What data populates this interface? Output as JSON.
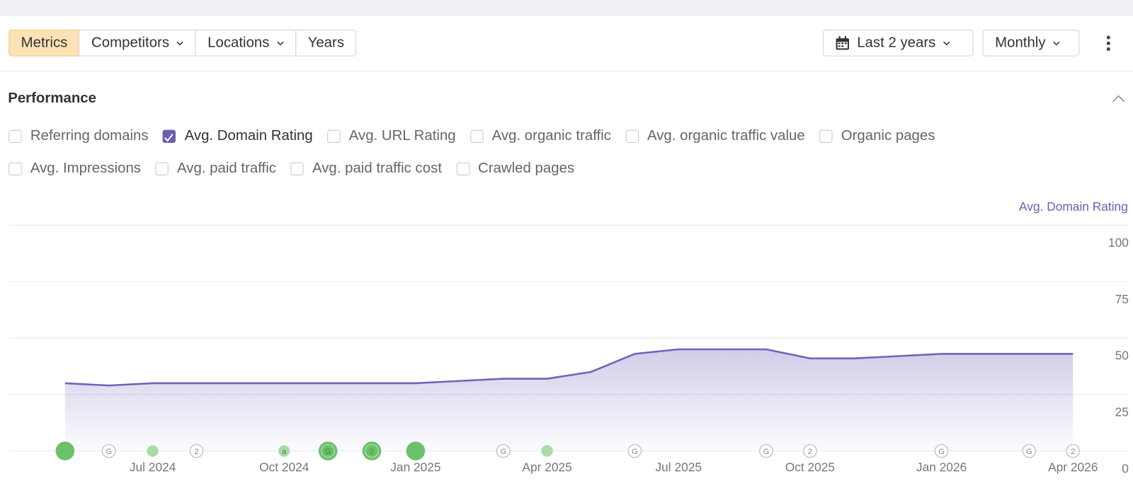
{
  "toolbar": {
    "tabs": [
      {
        "label": "Metrics",
        "active": true,
        "dropdown": false
      },
      {
        "label": "Competitors",
        "active": false,
        "dropdown": true
      },
      {
        "label": "Locations",
        "active": false,
        "dropdown": true
      },
      {
        "label": "Years",
        "active": false,
        "dropdown": false
      }
    ],
    "date_range": "Last 2 years",
    "interval": "Monthly"
  },
  "performance": {
    "title": "Performance",
    "option_rows": [
      [
        {
          "label": "Referring domains",
          "checked": false
        },
        {
          "label": "Avg. Domain Rating",
          "checked": true
        },
        {
          "label": "Avg. URL Rating",
          "checked": false
        },
        {
          "label": "Avg. organic traffic",
          "checked": false
        },
        {
          "label": "Avg. organic traffic value",
          "checked": false
        },
        {
          "label": "Organic pages",
          "checked": false
        }
      ],
      [
        {
          "label": "Avg. Impressions",
          "checked": false
        },
        {
          "label": "Avg. paid traffic",
          "checked": false
        },
        {
          "label": "Avg. paid traffic cost",
          "checked": false
        },
        {
          "label": "Crawled pages",
          "checked": false
        }
      ]
    ]
  },
  "chart_data": {
    "type": "area",
    "y_axis_label": "Avg. Domain Rating",
    "categories": [
      null,
      null,
      "Jul 2024",
      null,
      null,
      "Oct 2024",
      null,
      null,
      "Jan 2025",
      null,
      null,
      "Apr 2025",
      null,
      null,
      "Jul 2025",
      null,
      null,
      "Oct 2025",
      null,
      null,
      "Jan 2026",
      null,
      null,
      "Apr 2026"
    ],
    "values": [
      30,
      29,
      30,
      30,
      30,
      30,
      30,
      30,
      30,
      31,
      32,
      32,
      35,
      43,
      45,
      45,
      45,
      41,
      41,
      42,
      43,
      43,
      43,
      43
    ],
    "color": "#7262b8",
    "ylim": [
      0,
      100
    ],
    "yticks": [
      0,
      25,
      50,
      75,
      100
    ],
    "grid": true,
    "event_labels": [
      null,
      "G",
      null,
      "2",
      null,
      "a",
      "G",
      "2",
      null,
      null,
      "G",
      null,
      null,
      "G",
      null,
      null,
      "G",
      "2",
      null,
      null,
      "G",
      null,
      "G",
      "2"
    ],
    "event_dots": [
      "large",
      null,
      "small",
      null,
      null,
      "small",
      "large",
      "large",
      "large",
      null,
      null,
      "small",
      null,
      null,
      null,
      null,
      null,
      null,
      null,
      null,
      null,
      null,
      null,
      null
    ]
  }
}
